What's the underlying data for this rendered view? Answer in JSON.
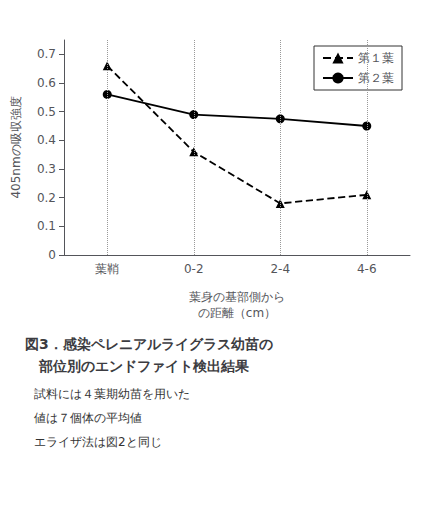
{
  "chart_data": {
    "type": "line",
    "title": "図3．感染ペレニアルライグラス幼苗の\n　部位別のエンドファイト検出結果",
    "annotations": [
      "試料には４葉期幼苗を用いた",
      "値は７個体の平均値",
      "エライザ法は図2と同じ"
    ],
    "x_label": "葉身の基部側から\nの距離（cm）",
    "y_label": "405nmの吸収強度",
    "categories": [
      "葉鞘",
      "0-2",
      "2-4",
      "4-6"
    ],
    "series": [
      {
        "name": "第１葉",
        "color": "black",
        "marker": "triangle",
        "line_style": "dashed",
        "values": [
          0.66,
          0.36,
          0.18,
          0.21
        ]
      },
      {
        "name": "第２葉",
        "color": "black",
        "marker": "circle",
        "line_style": "solid",
        "values": [
          0.56,
          0.49,
          0.475,
          0.45
        ]
      }
    ],
    "ylim": [
      0,
      0.75
    ],
    "yticks": [
      0,
      0.1,
      0.2,
      0.3,
      0.4,
      0.5,
      0.6,
      0.7
    ],
    "grid": true,
    "legend": "upper right"
  }
}
